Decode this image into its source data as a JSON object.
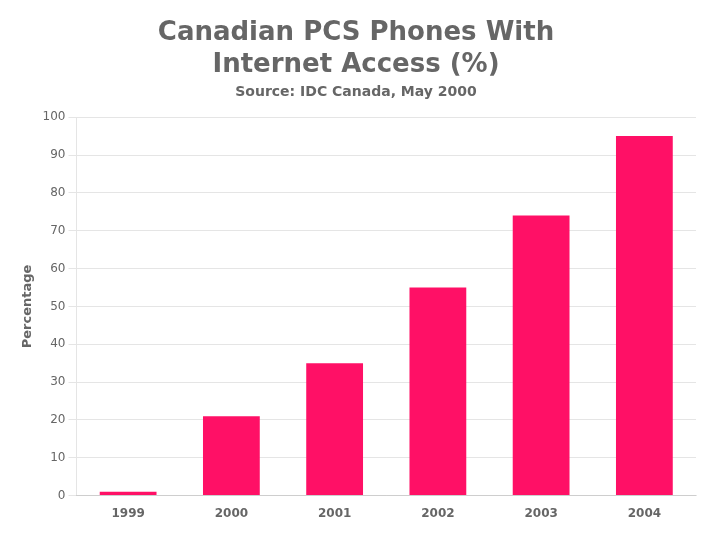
{
  "chart_data": {
    "type": "bar",
    "title": [
      "Canadian PCS Phones With",
      "Internet Access (%)"
    ],
    "subtitle": "Source: IDC Canada, May 2000",
    "categories": [
      "1999",
      "2000",
      "2001",
      "2002",
      "2003",
      "2004"
    ],
    "values": [
      1,
      21,
      35,
      55,
      74,
      95
    ],
    "color": "#FF1066",
    "ylabel": "Percentage",
    "ylim": [
      0,
      100
    ],
    "yticks": [
      0,
      10,
      20,
      30,
      40,
      50,
      60,
      70,
      80,
      90,
      100
    ],
    "grid": true,
    "legend": false
  }
}
